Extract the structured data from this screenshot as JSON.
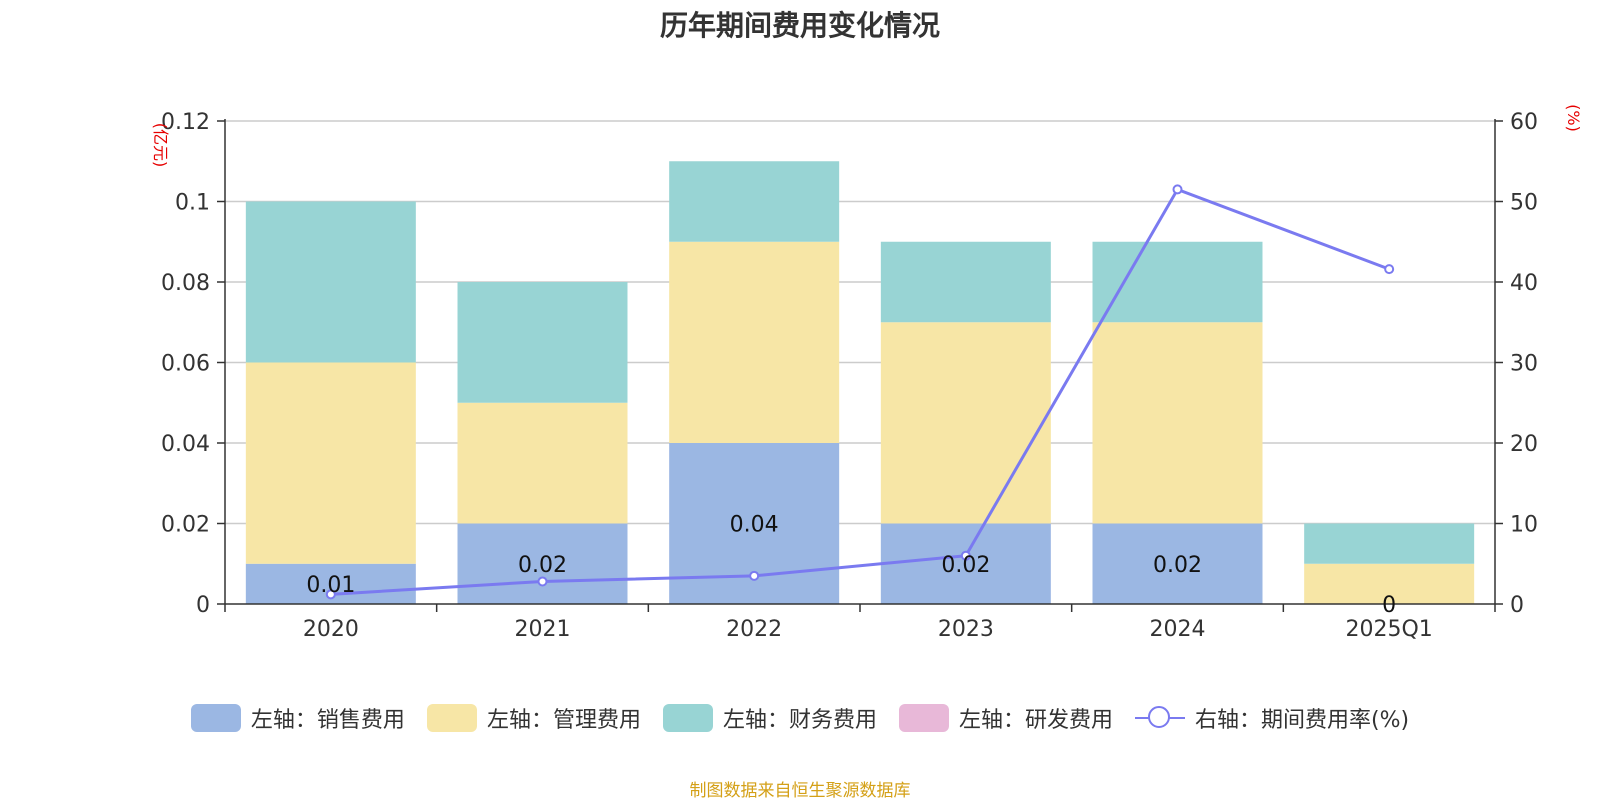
{
  "chart_data": {
    "type": "bar",
    "title": "历年期间费用变化情况",
    "categories": [
      "2020",
      "2021",
      "2022",
      "2023",
      "2024",
      "2025Q1"
    ],
    "left_axis": {
      "unit": "(亿元)",
      "ylim": [
        0,
        0.12
      ],
      "ticks": [
        "0",
        "0.02",
        "0.04",
        "0.06",
        "0.08",
        "0.1",
        "0.12"
      ]
    },
    "right_axis": {
      "unit": "(%)",
      "ylim": [
        0,
        60
      ],
      "ticks": [
        "0",
        "10",
        "20",
        "30",
        "40",
        "50",
        "60"
      ]
    },
    "series": [
      {
        "name": "左轴：销售费用",
        "kind": "bar",
        "color": "#9bb7e3",
        "values": [
          0.01,
          0.02,
          0.04,
          0.02,
          0.02,
          0
        ],
        "labels": [
          "0.01",
          "0.02",
          "0.04",
          "0.02",
          "0.02",
          "0"
        ]
      },
      {
        "name": "左轴：管理费用",
        "kind": "bar",
        "color": "#f7e6a6",
        "values": [
          0.05,
          0.03,
          0.05,
          0.05,
          0.05,
          0.01
        ]
      },
      {
        "name": "左轴：财务费用",
        "kind": "bar",
        "color": "#98d4d4",
        "values": [
          0.04,
          0.03,
          0.02,
          0.02,
          0.02,
          0.01
        ]
      },
      {
        "name": "左轴：研发费用",
        "kind": "bar",
        "color": "#e8b8d8",
        "values": [
          0,
          0,
          0,
          0,
          0,
          0
        ]
      },
      {
        "name": "右轴：期间费用率(%)",
        "kind": "line",
        "color": "#7a7af0",
        "values": [
          1.2,
          2.8,
          3.5,
          6.0,
          51.5,
          41.6
        ]
      }
    ]
  },
  "source": "制图数据来自恒生聚源数据库"
}
